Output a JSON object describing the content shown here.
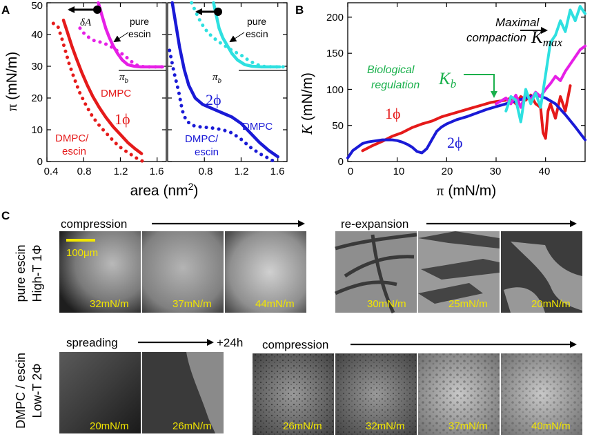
{
  "panel_letters": {
    "a": "A",
    "b": "B",
    "c": "C"
  },
  "colors": {
    "red": "#e51a1a",
    "magenta": "#e61fe6",
    "blue": "#1a1ad6",
    "cyan": "#2ee0e0",
    "green": "#19b04b",
    "yellow": "#f2e600",
    "black": "#000000"
  },
  "chart_data": [
    {
      "id": "A-left",
      "type": "line",
      "xlabel": "area (nm²)",
      "ylabel": "π (mN/m)",
      "xlim": [
        0.4,
        1.7
      ],
      "ylim": [
        0,
        50
      ],
      "xticks": [
        0.4,
        0.8,
        1.2,
        1.6
      ],
      "yticks": [
        0,
        10,
        20,
        30,
        40,
        50
      ],
      "series": [
        {
          "name": "DMPC",
          "style": "solid",
          "color": "red",
          "x": [
            0.58,
            0.62,
            0.67,
            0.72,
            0.78,
            0.84,
            0.9,
            0.97,
            1.04,
            1.12,
            1.2,
            1.28,
            1.36,
            1.43
          ],
          "y": [
            44.5,
            41,
            36.5,
            32.5,
            28,
            24,
            20.5,
            17,
            14,
            11,
            8.5,
            6,
            4,
            2.5
          ]
        },
        {
          "name": "DMPC/escin",
          "style": "dotted",
          "color": "red",
          "x": [
            0.47,
            0.52,
            0.56,
            0.6,
            0.64,
            0.7,
            0.76,
            0.83,
            0.9,
            0.98,
            1.06,
            1.14,
            1.22,
            1.3,
            1.38,
            1.45
          ],
          "y": [
            43.5,
            42.5,
            39,
            35,
            31,
            26,
            21.5,
            17.5,
            14,
            11,
            8.5,
            6,
            4,
            2.5,
            1,
            0
          ]
        },
        {
          "name": "pure escin",
          "style": "solid",
          "color": "magenta",
          "x": [
            0.96,
            1.0,
            1.04,
            1.08,
            1.12,
            1.17,
            1.22,
            1.28,
            1.35,
            1.42,
            1.5,
            1.58,
            1.66
          ],
          "y": [
            50,
            46,
            42,
            39,
            36.5,
            34,
            32,
            30.5,
            30,
            29.8,
            29.8,
            29.8,
            29.8
          ]
        },
        {
          "name": "pure escin",
          "style": "dotted",
          "color": "magenta",
          "x": [
            0.76,
            0.8,
            0.86,
            0.92,
            1.0,
            1.08,
            1.16,
            1.24,
            1.32,
            1.4,
            1.48,
            1.56,
            1.66
          ],
          "y": [
            42,
            40.5,
            39,
            38,
            37.5,
            36.5,
            35,
            33.5,
            31.5,
            30,
            29.8,
            29.8,
            29.8
          ]
        }
      ],
      "annotations": [
        "DMPC",
        "1ϕ",
        "DMPC/",
        "escin",
        "pure",
        "escin",
        "πb",
        "δA"
      ]
    },
    {
      "id": "A-right",
      "type": "line",
      "xlabel": "area (nm²)",
      "xlim": [
        0.4,
        1.7
      ],
      "ylim": [
        0,
        50
      ],
      "xticks": [
        0.8,
        1.2,
        1.6
      ],
      "series": [
        {
          "name": "DMPC",
          "style": "solid",
          "color": "blue",
          "x": [
            0.45,
            0.49,
            0.53,
            0.58,
            0.63,
            0.7,
            0.78,
            0.86,
            0.94,
            1.02,
            1.1,
            1.2,
            1.3,
            1.4,
            1.5,
            1.6
          ],
          "y": [
            50,
            43,
            36,
            29,
            24,
            20,
            18,
            17,
            16,
            15,
            14,
            12,
            9,
            6,
            3.5,
            1.5
          ]
        },
        {
          "name": "DMPC/escin",
          "style": "dotted",
          "color": "blue",
          "x": [
            0.42,
            0.47,
            0.52,
            0.56,
            0.6,
            0.66,
            0.72,
            0.8,
            0.9,
            1.0,
            1.1,
            1.2,
            1.3,
            1.4,
            1.5,
            1.56
          ],
          "y": [
            35,
            28,
            22,
            16,
            13,
            11.5,
            11,
            10.8,
            10.5,
            10,
            9,
            7,
            4.5,
            2.5,
            1,
            0
          ]
        },
        {
          "name": "pure escin",
          "style": "solid",
          "color": "cyan",
          "x": [
            0.9,
            0.93,
            0.96,
            1.0,
            1.05,
            1.1,
            1.16,
            1.24,
            1.32,
            1.42,
            1.52,
            1.62
          ],
          "y": [
            50,
            46,
            42,
            39,
            36.5,
            34,
            32,
            30.5,
            30,
            29.8,
            29.8,
            29.8
          ]
        },
        {
          "name": "pure escin",
          "style": "dotted",
          "color": "cyan",
          "x": [
            0.66,
            0.7,
            0.74,
            0.8,
            0.86,
            0.94,
            1.02,
            1.1,
            1.2,
            1.3,
            1.42,
            1.55,
            1.66
          ],
          "y": [
            50,
            47.5,
            45,
            42,
            40,
            38,
            36.5,
            35,
            33.5,
            31.5,
            30,
            29.8,
            29.8
          ]
        }
      ],
      "annotations": [
        "DMPC",
        "2ϕ",
        "DMPC/",
        "escin",
        "pure",
        "escin",
        "πb"
      ]
    },
    {
      "id": "B",
      "type": "line",
      "xlabel": "π (mN/m)",
      "ylabel": "K (mN/m)",
      "xlim": [
        0,
        48
      ],
      "ylim": [
        0,
        220
      ],
      "xticks": [
        0,
        10,
        20,
        30,
        40
      ],
      "yticks": [
        0,
        50,
        100,
        150,
        200
      ],
      "series": [
        {
          "name": "1ϕ",
          "color": "red",
          "x": [
            3,
            5,
            7,
            9,
            11,
            13,
            15,
            17,
            19,
            21,
            23,
            25,
            27,
            29,
            30,
            32,
            33,
            34,
            35,
            36,
            37,
            38,
            39,
            39.5,
            40,
            40.5,
            41,
            42,
            43,
            44,
            45
          ],
          "y": [
            15,
            22,
            28,
            35,
            40,
            47,
            52,
            56,
            62,
            66,
            70,
            74,
            78,
            82,
            83,
            85,
            88,
            80,
            90,
            85,
            92,
            80,
            75,
            40,
            32,
            70,
            80,
            60,
            90,
            70,
            105
          ]
        },
        {
          "name": "2ϕ",
          "color": "blue",
          "x": [
            0,
            1,
            2,
            3,
            4,
            5,
            6,
            7,
            8,
            9,
            10,
            11,
            12,
            13,
            14,
            15,
            16,
            17,
            18,
            19,
            20,
            22,
            24,
            26,
            28,
            30,
            32,
            34,
            36,
            38,
            40,
            42,
            44,
            46,
            48
          ],
          "y": [
            5,
            15,
            20,
            25,
            27,
            28,
            29,
            30,
            30,
            30,
            29,
            27,
            24,
            20,
            14,
            12,
            18,
            30,
            42,
            48,
            52,
            58,
            62,
            67,
            72,
            76,
            80,
            84,
            88,
            92,
            88,
            80,
            65,
            48,
            30
          ]
        },
        {
          "name": "pure escin (magenta)",
          "color": "magenta",
          "x": [
            30,
            31,
            32,
            33,
            34,
            35,
            36,
            37,
            38,
            39,
            40,
            41,
            42,
            43,
            44,
            45,
            46,
            47,
            48
          ],
          "y": [
            80,
            84,
            88,
            80,
            92,
            75,
            95,
            85,
            96,
            90,
            100,
            108,
            118,
            112,
            125,
            135,
            145,
            155,
            160
          ]
        },
        {
          "name": "pure escin (cyan)",
          "color": "cyan",
          "x": [
            32,
            33,
            34,
            35,
            36,
            37,
            38,
            39,
            40,
            41,
            42,
            43,
            44,
            45,
            46,
            47,
            48
          ],
          "y": [
            70,
            90,
            85,
            55,
            100,
            80,
            95,
            75,
            120,
            165,
            175,
            195,
            180,
            210,
            195,
            215,
            205
          ]
        }
      ],
      "annotations": [
        "1ϕ",
        "2ϕ",
        "Maximal",
        "compaction",
        "Kmax",
        "Biological",
        "regulation",
        "Kb"
      ]
    }
  ],
  "panelA": {
    "left_labels": {
      "dmpc": "DMPC",
      "phase": "1ϕ",
      "mix1": "DMPC/",
      "mix2": "escin",
      "pure1": "pure",
      "pure2": "escin",
      "pib": "π",
      "pib_sub": "b",
      "delta": "δA"
    },
    "right_labels": {
      "dmpc": "DMPC",
      "phase": "2ϕ",
      "mix1": "DMPC/",
      "mix2": "escin",
      "pure1": "pure",
      "pure2": "escin",
      "pib": "π",
      "pib_sub": "b"
    },
    "ylabel_sym": "π",
    "ylabel_unit": "(mN/m)",
    "xlabel": "area (nm",
    "xlabel_sup": "2",
    "xlabel_close": ")",
    "yticks": [
      "0",
      "10",
      "20",
      "30",
      "40",
      "50"
    ],
    "xticks_left": [
      "0.4",
      "0.8",
      "1.2",
      "1.6"
    ],
    "xticks_right": [
      "0.8",
      "1.2",
      "1.6"
    ]
  },
  "panelB": {
    "ylabel_sym": "K",
    "ylabel_unit": "(mN/m)",
    "xlabel_sym": "π",
    "xlabel_unit": "(mN/m)",
    "yticks": [
      "0",
      "50",
      "100",
      "150",
      "200"
    ],
    "xticks": [
      "0",
      "10",
      "20",
      "30",
      "40"
    ],
    "phase1": "1ϕ",
    "phase2": "2ϕ",
    "max1": "Maximal",
    "max2": "compaction",
    "kmax": "K",
    "kmax_sub": "max",
    "bio1": "Biological",
    "bio2": "regulation",
    "kb": "K",
    "kb_sub": "b"
  },
  "panelC": {
    "top_row_label1": "pure escin",
    "top_row_label2": "High-T 1Φ",
    "bottom_row_label1": "DMPC / escin",
    "bottom_row_label2": "Low-T 2Φ",
    "compression_label": "compression",
    "reexpansion_label": "re-expansion",
    "spreading_label": "spreading",
    "plus24": "+24h",
    "compression2_label": "compression",
    "scale_bar": "100μm",
    "top_left_tiles": [
      "32mN/m",
      "37mN/m",
      "44mN/m"
    ],
    "top_right_tiles": [
      "30mN/m",
      "25mN/m",
      "20mN/m"
    ],
    "bottom_left_tiles": [
      "20mN/m",
      "26mN/m"
    ],
    "bottom_right_tiles": [
      "26mN/m",
      "32mN/m",
      "37mN/m",
      "40mN/m"
    ]
  }
}
